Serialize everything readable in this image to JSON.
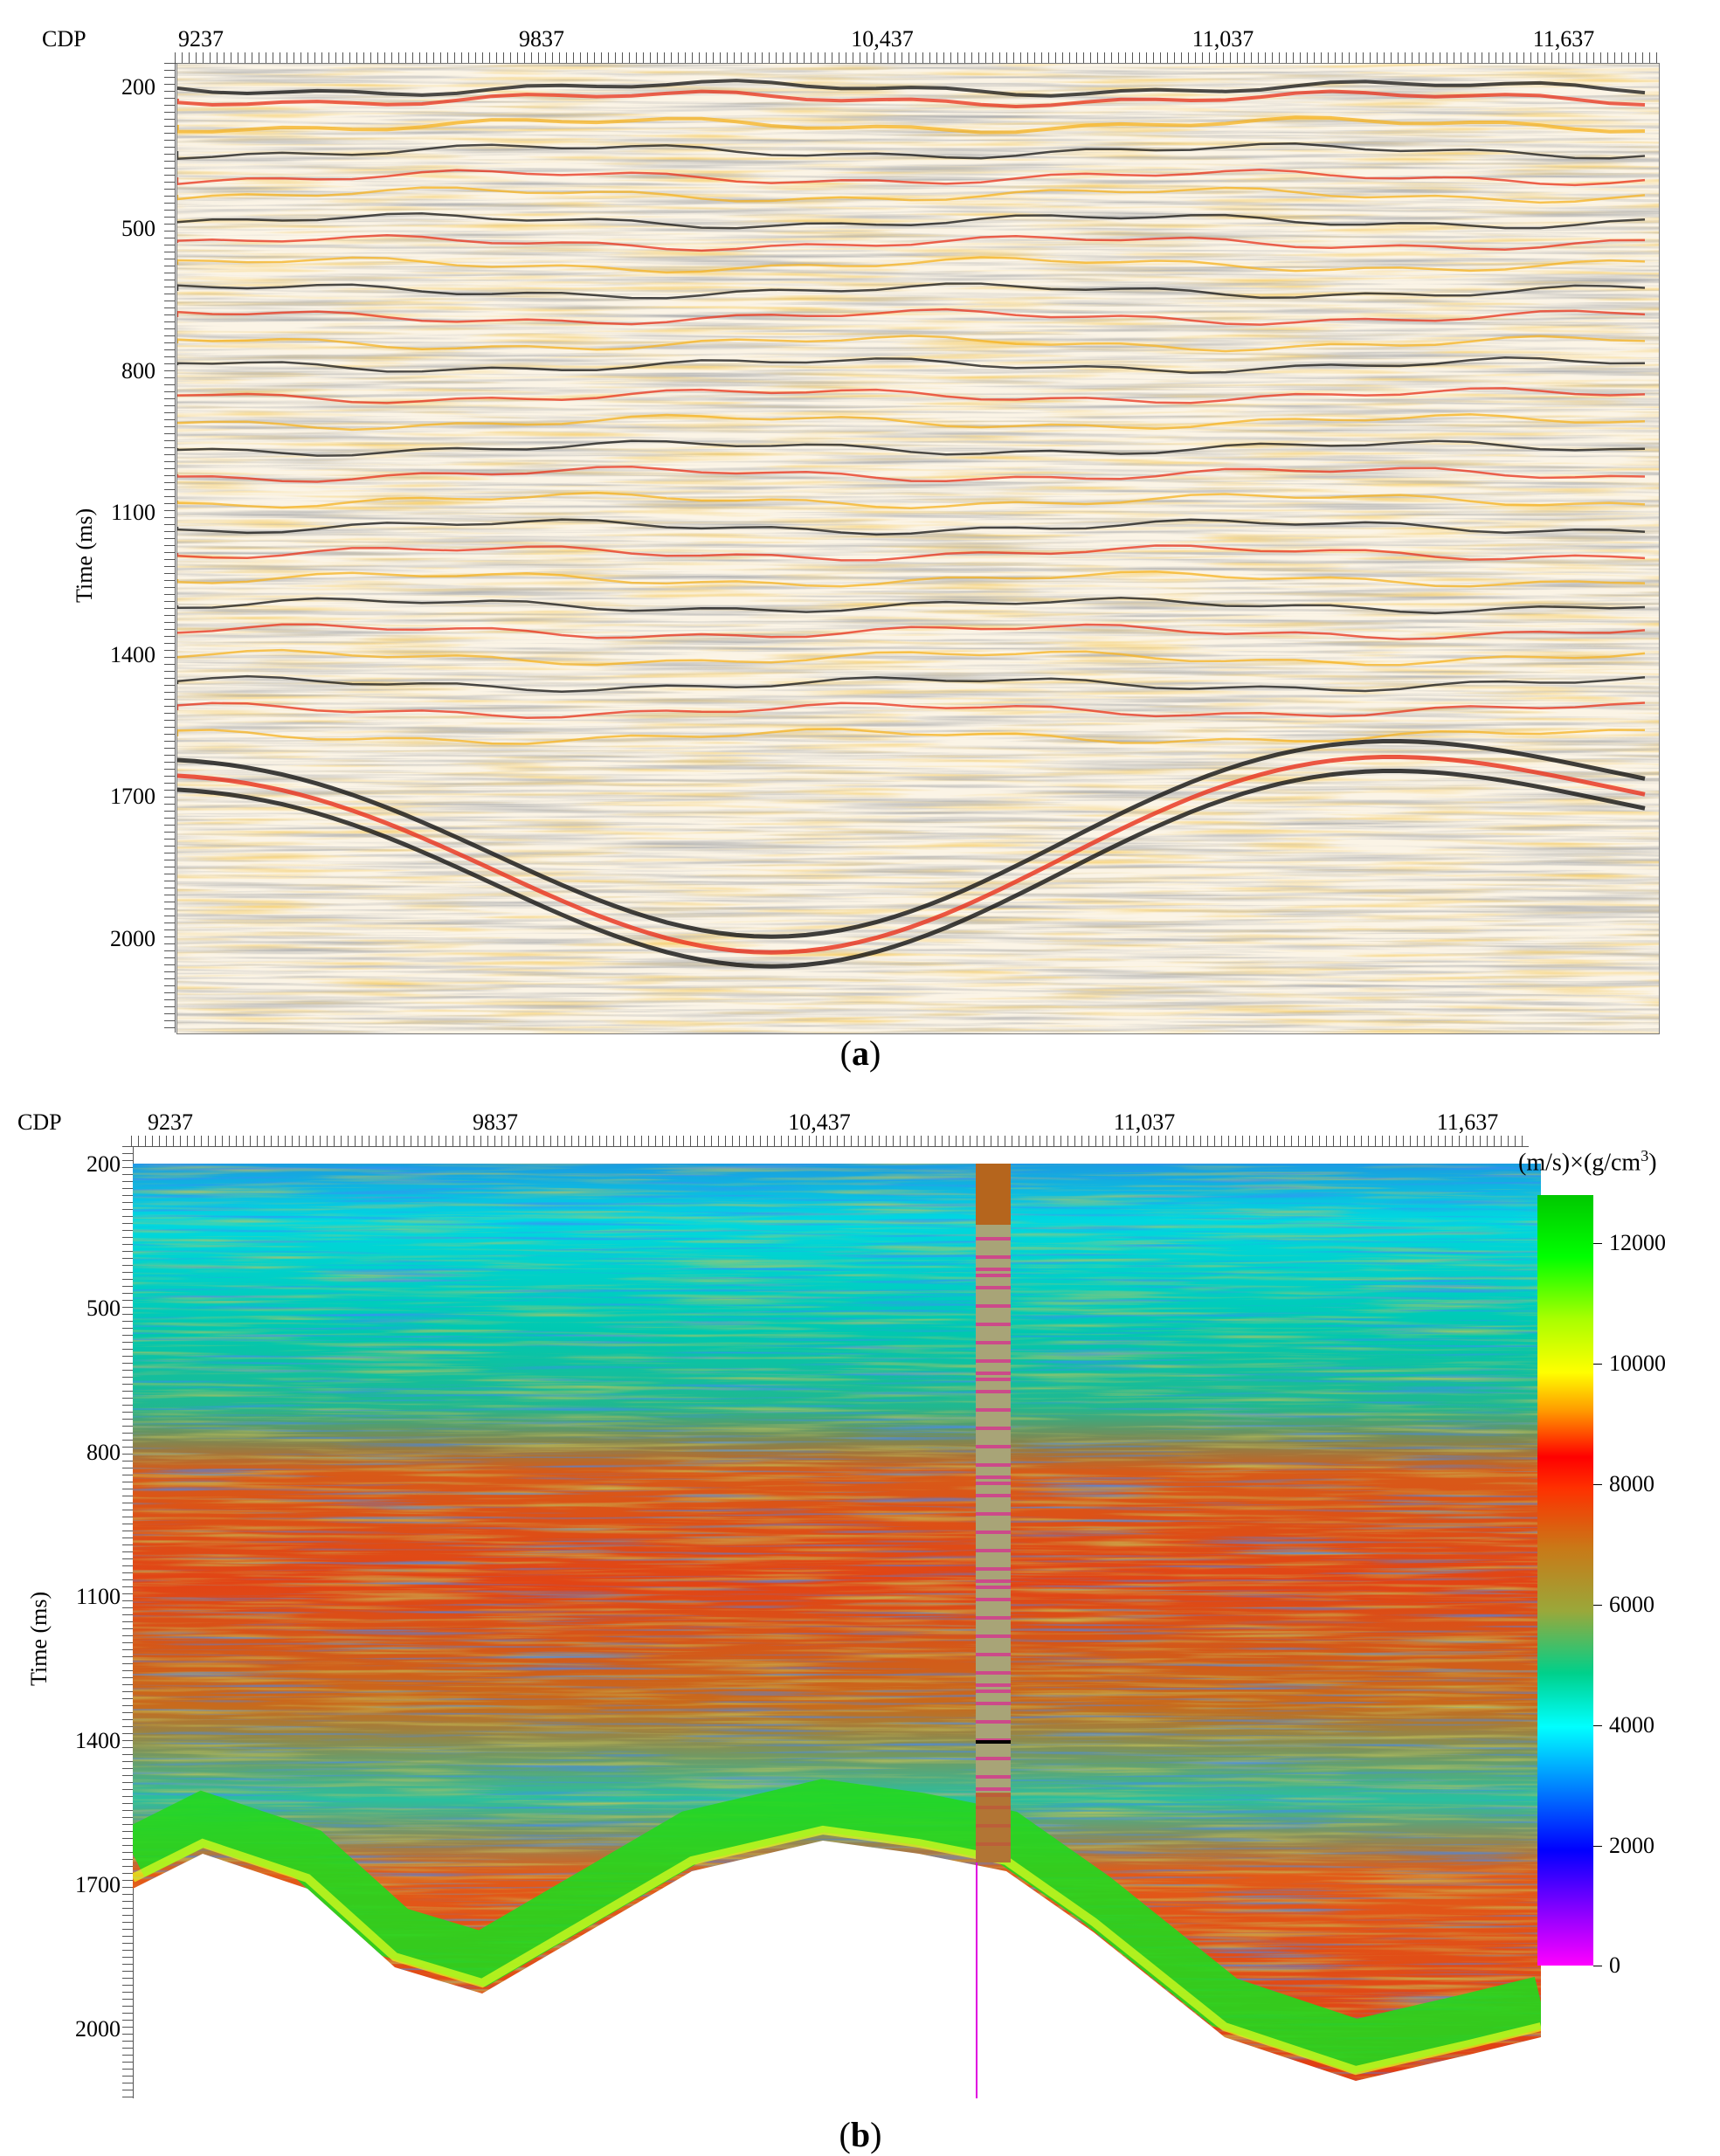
{
  "panel_a": {
    "cdp_label": "CDP",
    "x_ticks": [
      "9237",
      "9837",
      "10,437",
      "11,037",
      "11,637"
    ],
    "y_ticks": [
      "200",
      "500",
      "800",
      "1100",
      "1400",
      "1700",
      "2000"
    ],
    "y_axis_title": "Time (ms)",
    "caption_open": "(",
    "caption_letter": "a",
    "caption_close": ")"
  },
  "panel_b": {
    "cdp_label": "CDP",
    "x_ticks": [
      "9237",
      "9837",
      "10,437",
      "11,037",
      "11,637"
    ],
    "y_ticks": [
      "200",
      "500",
      "800",
      "1100",
      "1400",
      "1700",
      "2000"
    ],
    "y_axis_title": "Time (ms)",
    "colorbar_unit_prefix": "(m/s)×(g/cm",
    "colorbar_unit_sup": "3",
    "colorbar_unit_suffix": ")",
    "colorbar_ticks": [
      "12000",
      "10000",
      "8000",
      "6000",
      "4000",
      "2000",
      "0"
    ],
    "caption_open": "(",
    "caption_letter": "b",
    "caption_close": ")"
  },
  "colors": {
    "seismic_peak": "#111111",
    "seismic_trough": "#e8301a",
    "seismic_mid": "#f5b21e",
    "impedance_low": "#ff00ff",
    "impedance_high": "#00c800",
    "well_log_pink": "#cc4a8a",
    "well_log_tan": "#a8a477",
    "well_log_brown": "#b5651d",
    "well_line": "#e000e0"
  }
}
